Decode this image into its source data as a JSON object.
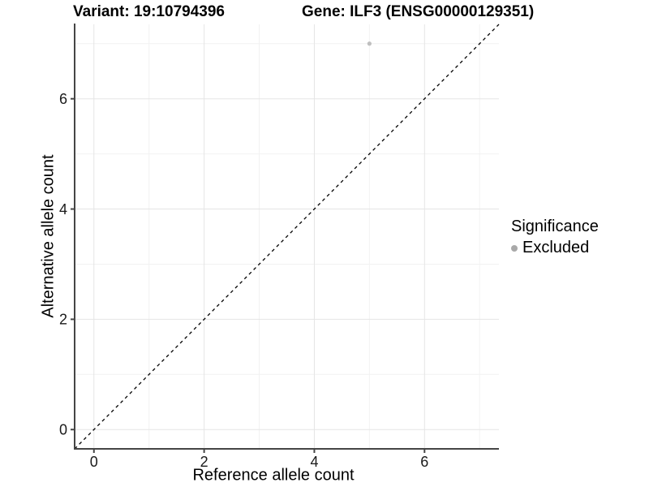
{
  "chart_data": {
    "type": "scatter",
    "titles": {
      "left": "Variant: 19:10794396",
      "right": "Gene: ILF3 (ENSG00000129351)"
    },
    "xlabel": "Reference allele count",
    "ylabel": "Alternative allele count",
    "xlim": [
      -0.35,
      7.35
    ],
    "ylim": [
      -0.35,
      7.35
    ],
    "x_ticks": [
      0,
      2,
      4,
      6
    ],
    "y_ticks": [
      0,
      2,
      4,
      6
    ],
    "x_minor_ticks": [
      1,
      3,
      5,
      7
    ],
    "y_minor_ticks": [
      1,
      3,
      5,
      7
    ],
    "grid": "major+minor",
    "legend_position": "right",
    "reference_line": {
      "kind": "identity",
      "slope": 1,
      "intercept": 0,
      "style": "dashed",
      "color": "#000000"
    },
    "series": [
      {
        "name": "Excluded",
        "color": "#bfbfbf",
        "points": [
          {
            "x": 5,
            "y": 7
          }
        ]
      }
    ],
    "legend": {
      "title": "Significance",
      "entries": [
        {
          "label": "Excluded",
          "color": "#a9a9a9"
        }
      ]
    },
    "style": {
      "grid_major_color": "#e5e5e5",
      "grid_minor_color": "#f2f2f2",
      "axis_line_color": "#454545",
      "tick_label_color": "#1a1a1a",
      "tick_label_size": 18,
      "point_radius": 2.6
    }
  }
}
